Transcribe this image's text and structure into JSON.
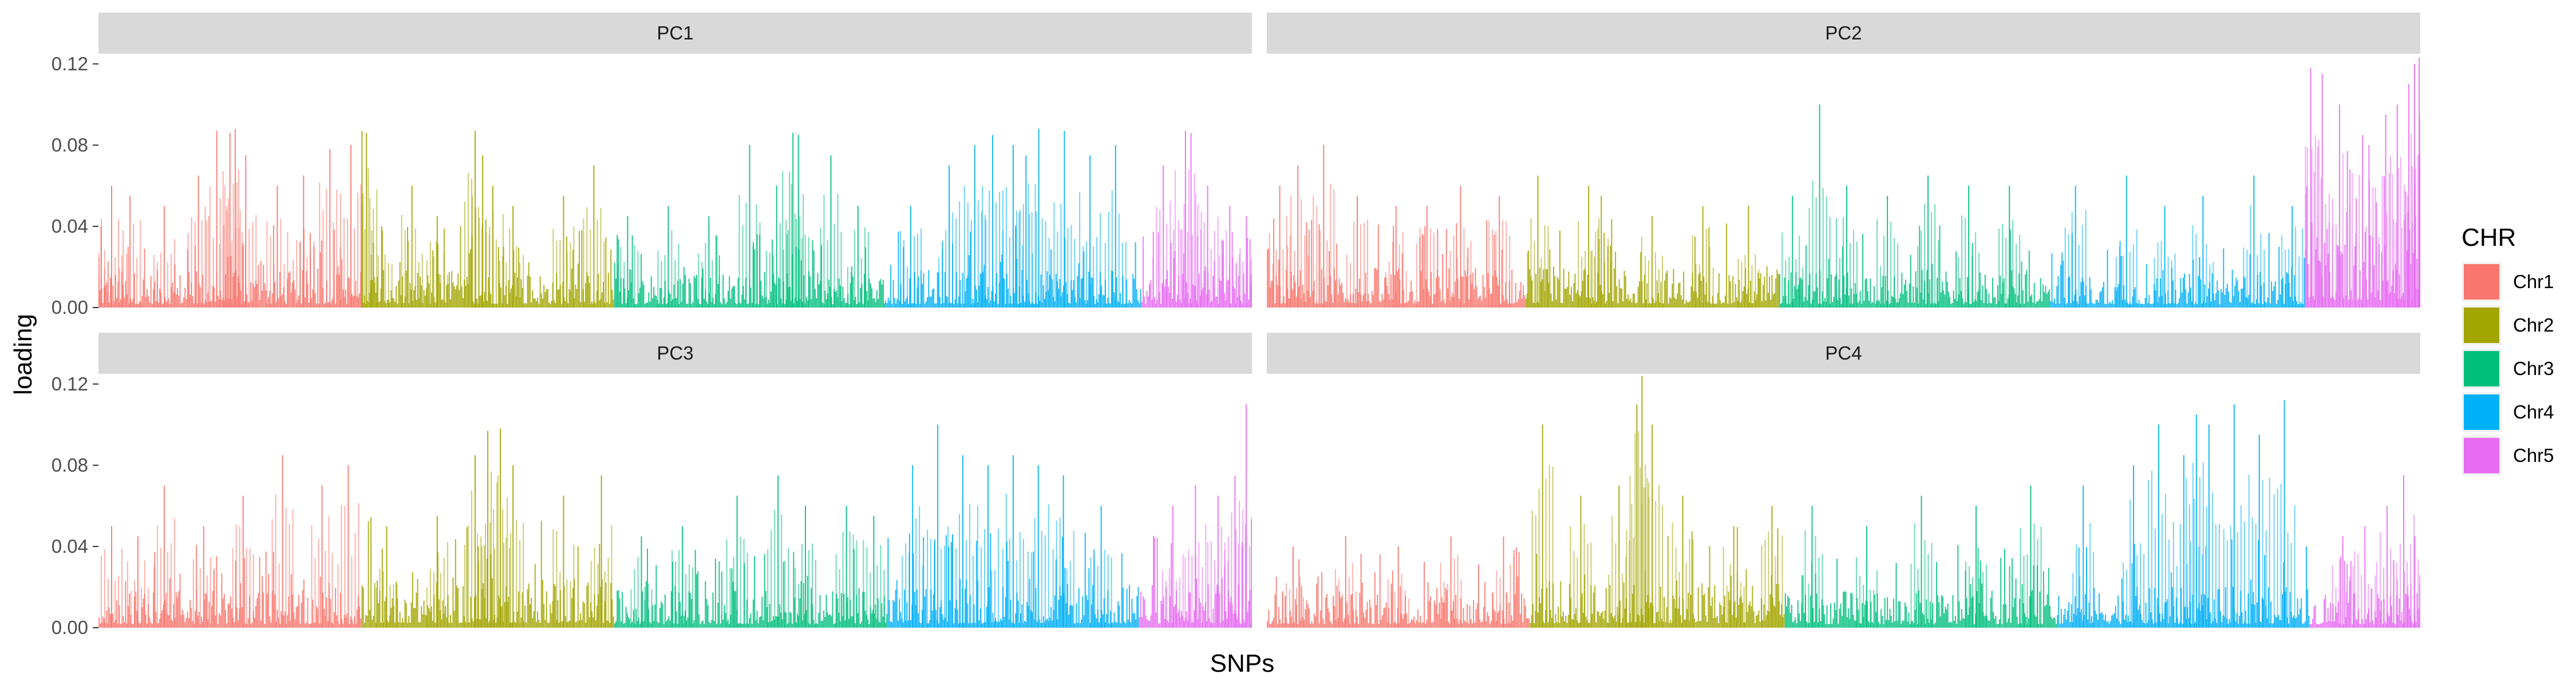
{
  "chart_data": {
    "type": "bar",
    "xlabel": "SNPs",
    "ylabel": "loading",
    "ylim": [
      0,
      0.125
    ],
    "y_ticks": [
      0.0,
      0.04,
      0.08,
      0.12
    ],
    "y_tick_labels": [
      "0.00",
      "0.04",
      "0.08",
      "0.12"
    ],
    "grid": false,
    "legend_position": "right",
    "legend": {
      "title": "CHR",
      "entries": [
        {
          "name": "Chr1",
          "color": "#F8766D"
        },
        {
          "name": "Chr2",
          "color": "#A3A500"
        },
        {
          "name": "Chr3",
          "color": "#00BF7D"
        },
        {
          "name": "Chr4",
          "color": "#00B0F6"
        },
        {
          "name": "Chr5",
          "color": "#E76BF3"
        }
      ]
    },
    "panels": [
      {
        "title": "PC1",
        "segments": [
          {
            "chr": "Chr1",
            "length": 0.228,
            "typical": 0.012,
            "peaks": [
              [
                0.01,
                0.04
              ],
              [
                0.05,
                0.06
              ],
              [
                0.12,
                0.055
              ],
              [
                0.25,
                0.05
              ],
              [
                0.38,
                0.065
              ],
              [
                0.45,
                0.087
              ],
              [
                0.5,
                0.086
              ],
              [
                0.52,
                0.088
              ],
              [
                0.56,
                0.075
              ],
              [
                0.68,
                0.06
              ],
              [
                0.78,
                0.065
              ],
              [
                0.88,
                0.078
              ],
              [
                0.96,
                0.08
              ]
            ]
          },
          {
            "chr": "Chr2",
            "length": 0.219,
            "typical": 0.012,
            "peaks": [
              [
                0.0,
                0.087
              ],
              [
                0.02,
                0.086
              ],
              [
                0.08,
                0.04
              ],
              [
                0.2,
                0.06
              ],
              [
                0.3,
                0.045
              ],
              [
                0.45,
                0.087
              ],
              [
                0.48,
                0.075
              ],
              [
                0.52,
                0.06
              ],
              [
                0.6,
                0.05
              ],
              [
                0.8,
                0.055
              ],
              [
                0.92,
                0.07
              ]
            ]
          },
          {
            "chr": "Chr3",
            "length": 0.235,
            "typical": 0.011,
            "peaks": [
              [
                0.05,
                0.045
              ],
              [
                0.2,
                0.05
              ],
              [
                0.35,
                0.045
              ],
              [
                0.5,
                0.08
              ],
              [
                0.6,
                0.06
              ],
              [
                0.66,
                0.086
              ],
              [
                0.68,
                0.085
              ],
              [
                0.8,
                0.075
              ],
              [
                0.9,
                0.05
              ]
            ]
          },
          {
            "chr": "Chr4",
            "length": 0.222,
            "typical": 0.012,
            "peaks": [
              [
                0.1,
                0.05
              ],
              [
                0.25,
                0.07
              ],
              [
                0.35,
                0.08
              ],
              [
                0.42,
                0.085
              ],
              [
                0.5,
                0.08
              ],
              [
                0.55,
                0.075
              ],
              [
                0.6,
                0.088
              ],
              [
                0.7,
                0.087
              ],
              [
                0.8,
                0.075
              ],
              [
                0.9,
                0.08
              ]
            ]
          },
          {
            "chr": "Chr5",
            "length": 0.096,
            "typical": 0.012,
            "peaks": [
              [
                0.2,
                0.07
              ],
              [
                0.4,
                0.087
              ],
              [
                0.45,
                0.086
              ],
              [
                0.6,
                0.06
              ],
              [
                0.8,
                0.05
              ],
              [
                0.95,
                0.045
              ]
            ]
          }
        ]
      },
      {
        "title": "PC2",
        "segments": [
          {
            "chr": "Chr1",
            "length": 0.224,
            "typical": 0.013,
            "peaks": [
              [
                0.05,
                0.06
              ],
              [
                0.12,
                0.07
              ],
              [
                0.22,
                0.08
              ],
              [
                0.35,
                0.055
              ],
              [
                0.5,
                0.05
              ],
              [
                0.62,
                0.05
              ],
              [
                0.75,
                0.06
              ],
              [
                0.9,
                0.055
              ]
            ]
          },
          {
            "chr": "Chr2",
            "length": 0.22,
            "typical": 0.013,
            "peaks": [
              [
                0.05,
                0.065
              ],
              [
                0.25,
                0.06
              ],
              [
                0.3,
                0.055
              ],
              [
                0.5,
                0.045
              ],
              [
                0.7,
                0.05
              ],
              [
                0.88,
                0.05
              ]
            ]
          },
          {
            "chr": "Chr3",
            "length": 0.235,
            "typical": 0.012,
            "peaks": [
              [
                0.05,
                0.055
              ],
              [
                0.15,
                0.1
              ],
              [
                0.25,
                0.06
              ],
              [
                0.4,
                0.055
              ],
              [
                0.55,
                0.065
              ],
              [
                0.7,
                0.06
              ],
              [
                0.85,
                0.06
              ]
            ]
          },
          {
            "chr": "Chr4",
            "length": 0.221,
            "typical": 0.011,
            "peaks": [
              [
                0.1,
                0.06
              ],
              [
                0.3,
                0.065
              ],
              [
                0.45,
                0.05
              ],
              [
                0.6,
                0.055
              ],
              [
                0.8,
                0.065
              ],
              [
                0.95,
                0.05
              ]
            ]
          },
          {
            "chr": "Chr5",
            "length": 0.1,
            "typical": 0.025,
            "peaks": [
              [
                0.05,
                0.118
              ],
              [
                0.15,
                0.115
              ],
              [
                0.3,
                0.1
              ],
              [
                0.5,
                0.085
              ],
              [
                0.7,
                0.095
              ],
              [
                0.8,
                0.1
              ],
              [
                0.9,
                0.11
              ],
              [
                0.95,
                0.12
              ],
              [
                0.99,
                0.123
              ]
            ]
          }
        ]
      },
      {
        "title": "PC3",
        "segments": [
          {
            "chr": "Chr1",
            "length": 0.228,
            "typical": 0.012,
            "peaks": [
              [
                0.05,
                0.05
              ],
              [
                0.15,
                0.045
              ],
              [
                0.25,
                0.07
              ],
              [
                0.4,
                0.05
              ],
              [
                0.55,
                0.065
              ],
              [
                0.7,
                0.085
              ],
              [
                0.85,
                0.07
              ],
              [
                0.95,
                0.08
              ]
            ]
          },
          {
            "chr": "Chr2",
            "length": 0.219,
            "typical": 0.016,
            "peaks": [
              [
                0.1,
                0.05
              ],
              [
                0.3,
                0.055
              ],
              [
                0.45,
                0.085
              ],
              [
                0.5,
                0.097
              ],
              [
                0.55,
                0.098
              ],
              [
                0.6,
                0.08
              ],
              [
                0.8,
                0.065
              ],
              [
                0.95,
                0.075
              ]
            ]
          },
          {
            "chr": "Chr3",
            "length": 0.237,
            "typical": 0.012,
            "peaks": [
              [
                0.1,
                0.045
              ],
              [
                0.25,
                0.05
              ],
              [
                0.45,
                0.065
              ],
              [
                0.6,
                0.075
              ],
              [
                0.7,
                0.06
              ],
              [
                0.85,
                0.06
              ],
              [
                0.95,
                0.055
              ]
            ]
          },
          {
            "chr": "Chr4",
            "length": 0.218,
            "typical": 0.014,
            "peaks": [
              [
                0.1,
                0.08
              ],
              [
                0.2,
                0.1
              ],
              [
                0.3,
                0.085
              ],
              [
                0.4,
                0.08
              ],
              [
                0.5,
                0.085
              ],
              [
                0.6,
                0.08
              ],
              [
                0.7,
                0.075
              ],
              [
                0.85,
                0.06
              ]
            ]
          },
          {
            "chr": "Chr5",
            "length": 0.098,
            "typical": 0.014,
            "peaks": [
              [
                0.3,
                0.06
              ],
              [
                0.5,
                0.07
              ],
              [
                0.7,
                0.065
              ],
              [
                0.85,
                0.075
              ],
              [
                0.95,
                0.11
              ]
            ]
          }
        ]
      },
      {
        "title": "PC4",
        "segments": [
          {
            "chr": "Chr1",
            "length": 0.228,
            "typical": 0.012,
            "peaks": [
              [
                0.1,
                0.04
              ],
              [
                0.3,
                0.045
              ],
              [
                0.5,
                0.04
              ],
              [
                0.7,
                0.045
              ],
              [
                0.9,
                0.045
              ]
            ]
          },
          {
            "chr": "Chr2",
            "length": 0.221,
            "typical": 0.015,
            "peaks": [
              [
                0.05,
                0.1
              ],
              [
                0.2,
                0.065
              ],
              [
                0.35,
                0.07
              ],
              [
                0.42,
                0.11
              ],
              [
                0.44,
                0.124
              ],
              [
                0.48,
                0.1
              ],
              [
                0.6,
                0.065
              ],
              [
                0.8,
                0.05
              ],
              [
                0.95,
                0.06
              ]
            ]
          },
          {
            "chr": "Chr3",
            "length": 0.237,
            "typical": 0.012,
            "peaks": [
              [
                0.1,
                0.06
              ],
              [
                0.3,
                0.05
              ],
              [
                0.5,
                0.065
              ],
              [
                0.7,
                0.06
              ],
              [
                0.9,
                0.07
              ]
            ]
          },
          {
            "chr": "Chr4",
            "length": 0.218,
            "typical": 0.013,
            "peaks": [
              [
                0.1,
                0.07
              ],
              [
                0.3,
                0.08
              ],
              [
                0.4,
                0.1
              ],
              [
                0.5,
                0.085
              ],
              [
                0.55,
                0.105
              ],
              [
                0.6,
                0.1
              ],
              [
                0.7,
                0.11
              ],
              [
                0.8,
                0.095
              ],
              [
                0.9,
                0.112
              ]
            ]
          },
          {
            "chr": "Chr5",
            "length": 0.096,
            "typical": 0.011,
            "peaks": [
              [
                0.3,
                0.045
              ],
              [
                0.5,
                0.05
              ],
              [
                0.7,
                0.06
              ],
              [
                0.85,
                0.075
              ],
              [
                0.95,
                0.045
              ]
            ]
          }
        ]
      }
    ]
  }
}
